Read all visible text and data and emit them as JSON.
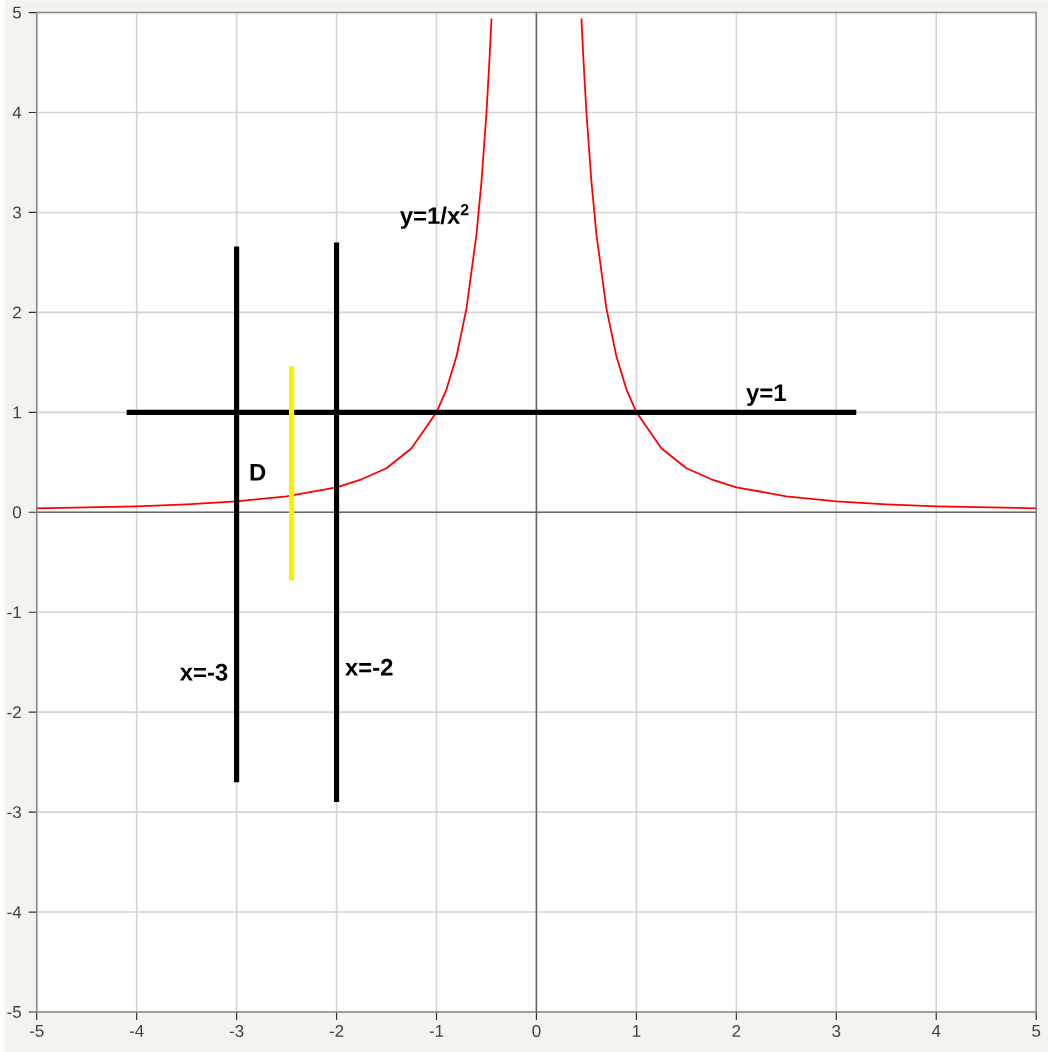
{
  "chart_data": {
    "type": "line",
    "xlim": [
      -5,
      5
    ],
    "ylim": [
      -5,
      5
    ],
    "xticks": [
      -5,
      -4,
      -3,
      -2,
      -1,
      0,
      1,
      2,
      3,
      4,
      5
    ],
    "yticks": [
      -5,
      -4,
      -3,
      -2,
      -1,
      0,
      1,
      2,
      3,
      4,
      5
    ],
    "grid": true,
    "series": [
      {
        "color": "#ff0000",
        "x": [
          -5,
          -4.5,
          -4,
          -3.5,
          -3,
          -2.5,
          -2,
          -1.75,
          -1.5,
          -1.25,
          -1,
          -0.9,
          -0.8,
          -0.7,
          -0.6,
          -0.55,
          -0.5,
          -0.47,
          -0.45,
          0,
          0.45,
          0.47,
          0.5,
          0.55,
          0.6,
          0.7,
          0.8,
          0.9,
          1,
          1.25,
          1.5,
          1.75,
          2,
          2.5,
          3,
          3.5,
          4,
          4.5,
          5
        ],
        "values": [
          0.04,
          0.05,
          0.06,
          0.08,
          0.11,
          0.16,
          0.25,
          0.33,
          0.44,
          0.64,
          1,
          1.23,
          1.56,
          2.04,
          2.78,
          3.31,
          4,
          4.53,
          4.94,
          null,
          4.94,
          4.53,
          4,
          3.31,
          2.78,
          2.04,
          1.56,
          1.23,
          1,
          0.64,
          0.44,
          0.33,
          0.25,
          0.16,
          0.11,
          0.08,
          0.06,
          0.05,
          0.04
        ]
      },
      {
        "color": "#000000",
        "x": [
          -4.1,
          3.2
        ],
        "values": [
          1,
          1
        ]
      },
      {
        "color": "#000000",
        "x": [
          -3,
          -3
        ],
        "values": [
          -2.7,
          2.66
        ]
      },
      {
        "color": "#000000",
        "x": [
          -2,
          -2
        ],
        "values": [
          -2.9,
          2.7
        ]
      },
      {
        "color": "#ffee00",
        "x": [
          -2.45,
          -2.45
        ],
        "values": [
          -0.68,
          1.46
        ]
      }
    ],
    "annotations": [
      {
        "text": "y=1/x$^{2}$",
        "x": -0.6,
        "y": 2.78
      },
      {
        "text": "y=1",
        "x": 2.3,
        "y": 1
      },
      {
        "text": "x=-3",
        "x": -3,
        "y": -1.6
      },
      {
        "text": "x=-2",
        "x": -2,
        "y": -1.55
      },
      {
        "text": "D",
        "x": -3,
        "y": 0.4
      }
    ]
  }
}
